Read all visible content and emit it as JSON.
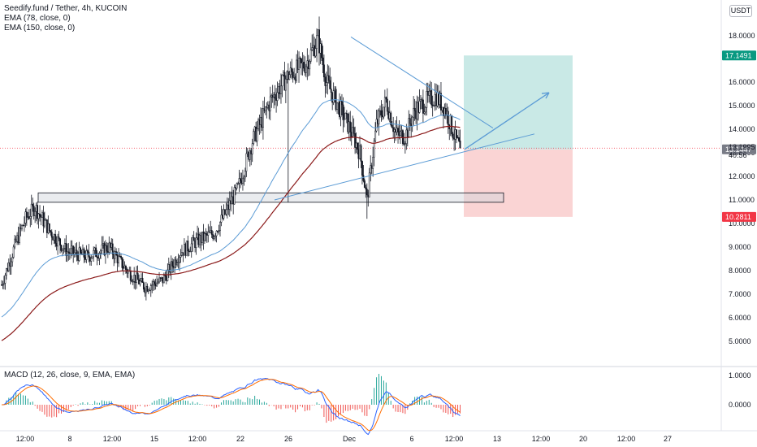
{
  "legend": {
    "title": "Seedify.fund / Tether, 4h, KUCOIN",
    "ema1": "EMA (78, close, 0)",
    "ema2": "EMA (150, close, 0)"
  },
  "macd_legend": "MACD (12, 26, close, 9, EMA, EMA)",
  "currency_button": "USDT",
  "colors": {
    "up": "#131722",
    "down": "#131722",
    "ema78": "#5b9bd5",
    "ema150": "#8b1a1a",
    "target_zone": "#b2dfdb",
    "stop_zone": "#f8c6c6",
    "trend": "#5b9bd5",
    "macd_line": "#2962ff",
    "signal_line": "#ff6d00",
    "hist_pos": "#26a69a",
    "hist_neg": "#ef5350",
    "price_badge": "#131722",
    "target_badge": "#089981",
    "stop_badge": "#f23645"
  },
  "chart_data": {
    "type": "candlestick",
    "y_axis_ticks": [
      "18.0000",
      "16.0000",
      "15.0000",
      "14.0000",
      "13.0000",
      "12.0000",
      "11.0000",
      "10.0000",
      "9.0000",
      "8.0000",
      "7.0000",
      "6.0000",
      "5.0000"
    ],
    "x_axis_ticks": [
      "12:00",
      "8",
      "12:00",
      "15",
      "12:00",
      "22",
      "26",
      "Dec",
      "6",
      "12:00",
      "13",
      "12:00",
      "20",
      "12:00",
      "27"
    ],
    "macd_ticks": [
      "1.0000",
      "0.0000"
    ],
    "price_labels": {
      "target": "17.1491",
      "current": "13.1995",
      "countdown": "40:56",
      "entry": "13.1447",
      "stop": "10.2811"
    },
    "ylim": [
      4.5,
      18.6
    ],
    "last_price": 13.1995,
    "position": {
      "entry": 13.1447,
      "target": 17.1491,
      "stop": 10.2811
    },
    "support_zone": [
      10.9,
      11.3
    ],
    "key_points": {
      "low_start": 7.4,
      "swing_high_1": 10.7,
      "range_low": 7.3,
      "breakout": 11.5,
      "peak": 17.9,
      "pullback_low": 11.0,
      "bounce_high": 15.4,
      "last": 13.2
    }
  }
}
